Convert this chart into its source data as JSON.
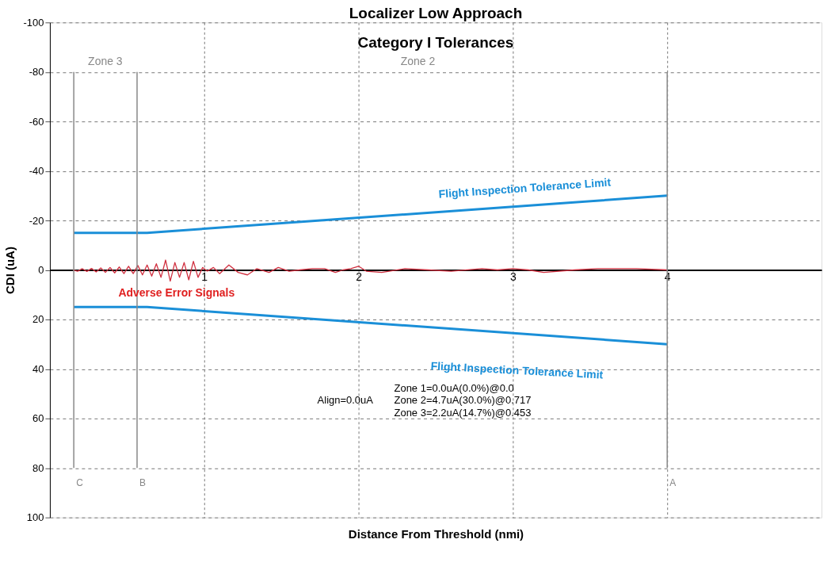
{
  "chart_data": {
    "type": "line",
    "title": "Localizer Low Approach",
    "subtitle": "Category I Tolerances",
    "xlabel": "Distance From Threshold (nmi)",
    "ylabel": "CDI (uA)",
    "xlim": [
      0,
      5
    ],
    "xticks": [
      1,
      2,
      3,
      4
    ],
    "ylim": [
      100,
      -100
    ],
    "yticks": [
      -100,
      -80,
      -60,
      -40,
      -20,
      0,
      20,
      40,
      60,
      80,
      100
    ],
    "grid": true,
    "marker": "none",
    "line_style": "solid",
    "series": [
      {
        "color": "#1a8fd8",
        "x": [
          0.155,
          0.63,
          4.0
        ],
        "values": [
          -15,
          -15,
          -30
        ]
      },
      {
        "color": "#1a8fd8",
        "x": [
          0.155,
          0.63,
          4.0
        ],
        "values": [
          15,
          15,
          30
        ]
      },
      {
        "color": "#d03040",
        "x": [
          0.15,
          0.18,
          0.21,
          0.24,
          0.27,
          0.3,
          0.33,
          0.36,
          0.39,
          0.42,
          0.45,
          0.48,
          0.51,
          0.54,
          0.57,
          0.6,
          0.63,
          0.66,
          0.69,
          0.72,
          0.75,
          0.78,
          0.81,
          0.84,
          0.87,
          0.9,
          0.93,
          0.96,
          0.99,
          1.02,
          1.06,
          1.1,
          1.16,
          1.22,
          1.28,
          1.34,
          1.42,
          1.48,
          1.55,
          1.62,
          1.7,
          1.78,
          1.85,
          1.9,
          1.95,
          2.0,
          2.05,
          2.15,
          2.3,
          2.45,
          2.6,
          2.8,
          2.9,
          3.0,
          3.1,
          3.2,
          3.4,
          3.55,
          3.8,
          4.0
        ],
        "values": [
          0,
          0.5,
          -0.5,
          0.6,
          -0.6,
          0.8,
          -0.8,
          1,
          -1,
          1.2,
          -1.2,
          1.5,
          -1.5,
          1.5,
          -1.8,
          2,
          -2,
          2.5,
          -2.5,
          3,
          -4,
          4.5,
          -3,
          3,
          -3,
          4,
          -3.5,
          3,
          -1,
          0.5,
          -1,
          1.5,
          -2,
          1,
          2,
          -0.5,
          1,
          -1,
          0.5,
          0,
          -0.5,
          -0.5,
          1,
          0,
          -0.5,
          -1.5,
          0.5,
          1,
          -0.5,
          0,
          0.5,
          -0.5,
          0,
          -0.5,
          0,
          1,
          0,
          -0.5,
          -0.5,
          0
        ]
      }
    ],
    "ref_lines": [
      {
        "axis": "x",
        "value": 0.155,
        "label": "C",
        "color": "#888888"
      },
      {
        "axis": "x",
        "value": 0.565,
        "label": "B",
        "color": "#888888"
      },
      {
        "axis": "x",
        "value": 4,
        "label": "A",
        "color": "#888888"
      }
    ],
    "annotations": [
      "Zone 3",
      "Zone 2",
      "Flight Inspection Tolerance Limit",
      "Flight Inspection Tolerance Limit",
      "Adverse Error Signals",
      "Align=0.0uA",
      "Zone 1=0.0uA(0.0%)@0.0",
      "Zone 2=4.7uA(30.0%)@0.717",
      "Zone 3=2.2uA(14.7%)@0.453"
    ]
  }
}
